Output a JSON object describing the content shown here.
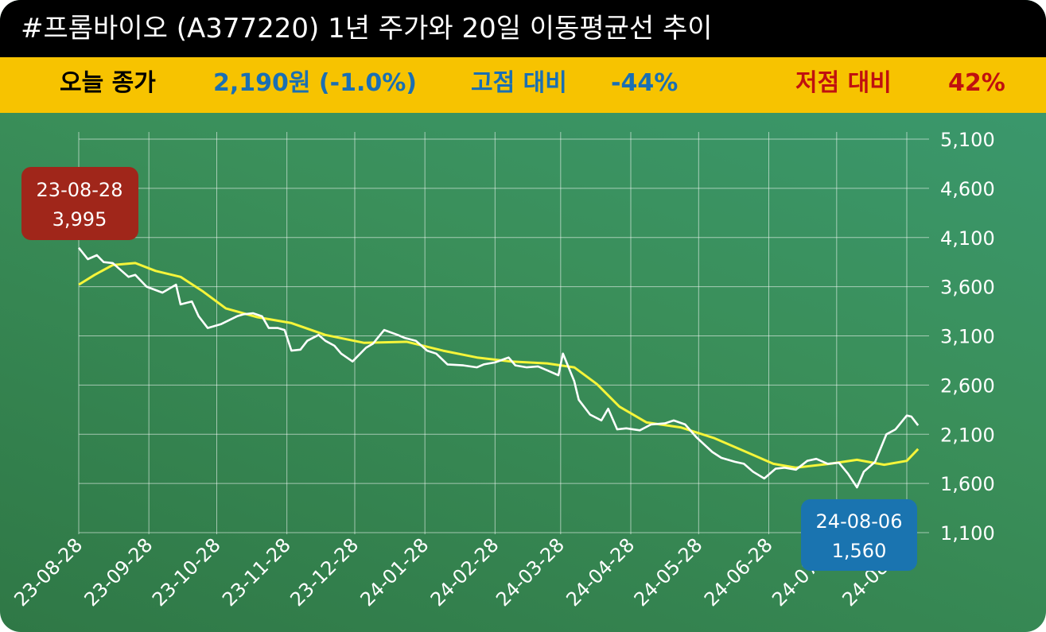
{
  "title": "#프롬바이오 (A377220) 1년 주가와 20일 이동평균선 추이",
  "info": {
    "close_label": "오늘 종가",
    "close_value": "2,190원 (-1.0%)",
    "high_label": "고점 대비",
    "high_value": "-44%",
    "low_label": "저점 대비",
    "low_value": "42%"
  },
  "colors": {
    "title_bg": "#000000",
    "info_bg": "#f7c300",
    "close_label": "#000000",
    "close_value": "#1a6fb3",
    "high_label": "#1a6fb3",
    "high_value": "#1a6fb3",
    "low_label": "#c0100f",
    "low_value": "#c0100f",
    "price_line": "#ffffff",
    "ma_line": "#f5f53a",
    "high_callout": "#a0261a",
    "low_callout": "#1a74b0"
  },
  "callouts": {
    "high": {
      "date": "23-08-28",
      "value": "3,995"
    },
    "low": {
      "date": "24-08-06",
      "value": "1,560"
    }
  },
  "chart_data": {
    "type": "line",
    "ylim": [
      1100,
      5100
    ],
    "yticks": [
      "5,100",
      "4,600",
      "4,100",
      "3,600",
      "3,100",
      "2,600",
      "2,100",
      "1,600",
      "1,100"
    ],
    "ytick_values": [
      5100,
      4600,
      4100,
      3600,
      3100,
      2600,
      2100,
      1600,
      1100
    ],
    "xticks": [
      "23-08-28",
      "23-09-28",
      "23-10-28",
      "23-11-28",
      "23-12-28",
      "24-01-28",
      "24-02-28",
      "24-03-28",
      "24-04-28",
      "24-05-28",
      "24-06-28",
      "24-07-28",
      "24-08-28"
    ],
    "grid": true,
    "series": [
      {
        "color": "#ffffff",
        "points": [
          [
            "2023-08-28",
            3995
          ],
          [
            "2023-09-01",
            3880
          ],
          [
            "2023-09-05",
            3920
          ],
          [
            "2023-09-08",
            3850
          ],
          [
            "2023-09-12",
            3840
          ],
          [
            "2023-09-15",
            3780
          ],
          [
            "2023-09-19",
            3700
          ],
          [
            "2023-09-22",
            3720
          ],
          [
            "2023-09-27",
            3600
          ],
          [
            "2023-10-04",
            3540
          ],
          [
            "2023-10-10",
            3620
          ],
          [
            "2023-10-12",
            3420
          ],
          [
            "2023-10-17",
            3450
          ],
          [
            "2023-10-20",
            3300
          ],
          [
            "2023-10-24",
            3180
          ],
          [
            "2023-10-30",
            3220
          ],
          [
            "2023-11-06",
            3300
          ],
          [
            "2023-11-09",
            3320
          ],
          [
            "2023-11-13",
            3330
          ],
          [
            "2023-11-17",
            3300
          ],
          [
            "2023-11-20",
            3180
          ],
          [
            "2023-11-24",
            3180
          ],
          [
            "2023-11-27",
            3160
          ],
          [
            "2023-11-30",
            2950
          ],
          [
            "2023-12-04",
            2960
          ],
          [
            "2023-12-07",
            3050
          ],
          [
            "2023-12-12",
            3110
          ],
          [
            "2023-12-15",
            3050
          ],
          [
            "2023-12-19",
            3000
          ],
          [
            "2023-12-22",
            2920
          ],
          [
            "2023-12-27",
            2840
          ],
          [
            "2024-01-02",
            2980
          ],
          [
            "2024-01-05",
            3020
          ],
          [
            "2024-01-10",
            3160
          ],
          [
            "2024-01-16",
            3110
          ],
          [
            "2024-01-19",
            3080
          ],
          [
            "2024-01-24",
            3050
          ],
          [
            "2024-01-29",
            2950
          ],
          [
            "2024-02-02",
            2920
          ],
          [
            "2024-02-07",
            2810
          ],
          [
            "2024-02-14",
            2800
          ],
          [
            "2024-02-20",
            2780
          ],
          [
            "2024-02-23",
            2810
          ],
          [
            "2024-02-28",
            2830
          ],
          [
            "2024-03-05",
            2880
          ],
          [
            "2024-03-08",
            2800
          ],
          [
            "2024-03-13",
            2780
          ],
          [
            "2024-03-18",
            2790
          ],
          [
            "2024-03-22",
            2750
          ],
          [
            "2024-03-27",
            2700
          ],
          [
            "2024-03-29",
            2920
          ],
          [
            "2024-04-03",
            2640
          ],
          [
            "2024-04-05",
            2450
          ],
          [
            "2024-04-10",
            2300
          ],
          [
            "2024-04-15",
            2240
          ],
          [
            "2024-04-18",
            2360
          ],
          [
            "2024-04-22",
            2150
          ],
          [
            "2024-04-26",
            2160
          ],
          [
            "2024-05-02",
            2140
          ],
          [
            "2024-05-07",
            2200
          ],
          [
            "2024-05-13",
            2210
          ],
          [
            "2024-05-17",
            2240
          ],
          [
            "2024-05-22",
            2200
          ],
          [
            "2024-05-27",
            2070
          ],
          [
            "2024-06-03",
            1920
          ],
          [
            "2024-06-07",
            1860
          ],
          [
            "2024-06-13",
            1820
          ],
          [
            "2024-06-17",
            1800
          ],
          [
            "2024-06-21",
            1720
          ],
          [
            "2024-06-26",
            1650
          ],
          [
            "2024-07-01",
            1750
          ],
          [
            "2024-07-05",
            1760
          ],
          [
            "2024-07-10",
            1740
          ],
          [
            "2024-07-15",
            1830
          ],
          [
            "2024-07-19",
            1850
          ],
          [
            "2024-07-24",
            1800
          ],
          [
            "2024-07-29",
            1810
          ],
          [
            "2024-08-02",
            1700
          ],
          [
            "2024-08-06",
            1560
          ],
          [
            "2024-08-09",
            1720
          ],
          [
            "2024-08-14",
            1820
          ],
          [
            "2024-08-19",
            2100
          ],
          [
            "2024-08-23",
            2150
          ],
          [
            "2024-08-28",
            2290
          ],
          [
            "2024-08-30",
            2280
          ],
          [
            "2024-09-02",
            2190
          ]
        ]
      },
      {
        "color": "#f5f53a",
        "points": [
          [
            "2023-08-28",
            3620
          ],
          [
            "2023-09-04",
            3720
          ],
          [
            "2023-09-12",
            3820
          ],
          [
            "2023-09-22",
            3840
          ],
          [
            "2023-10-01",
            3760
          ],
          [
            "2023-10-12",
            3700
          ],
          [
            "2023-10-22",
            3550
          ],
          [
            "2023-11-01",
            3380
          ],
          [
            "2023-11-15",
            3290
          ],
          [
            "2023-11-30",
            3230
          ],
          [
            "2023-12-15",
            3110
          ],
          [
            "2024-01-01",
            3030
          ],
          [
            "2024-01-20",
            3040
          ],
          [
            "2024-02-05",
            2950
          ],
          [
            "2024-02-20",
            2880
          ],
          [
            "2024-03-06",
            2840
          ],
          [
            "2024-03-22",
            2820
          ],
          [
            "2024-04-03",
            2780
          ],
          [
            "2024-04-13",
            2610
          ],
          [
            "2024-04-23",
            2380
          ],
          [
            "2024-05-05",
            2220
          ],
          [
            "2024-05-20",
            2170
          ],
          [
            "2024-06-04",
            2060
          ],
          [
            "2024-06-18",
            1920
          ],
          [
            "2024-06-30",
            1800
          ],
          [
            "2024-07-10",
            1760
          ],
          [
            "2024-07-25",
            1800
          ],
          [
            "2024-08-06",
            1840
          ],
          [
            "2024-08-18",
            1790
          ],
          [
            "2024-08-28",
            1830
          ],
          [
            "2024-09-02",
            1950
          ]
        ]
      }
    ]
  }
}
